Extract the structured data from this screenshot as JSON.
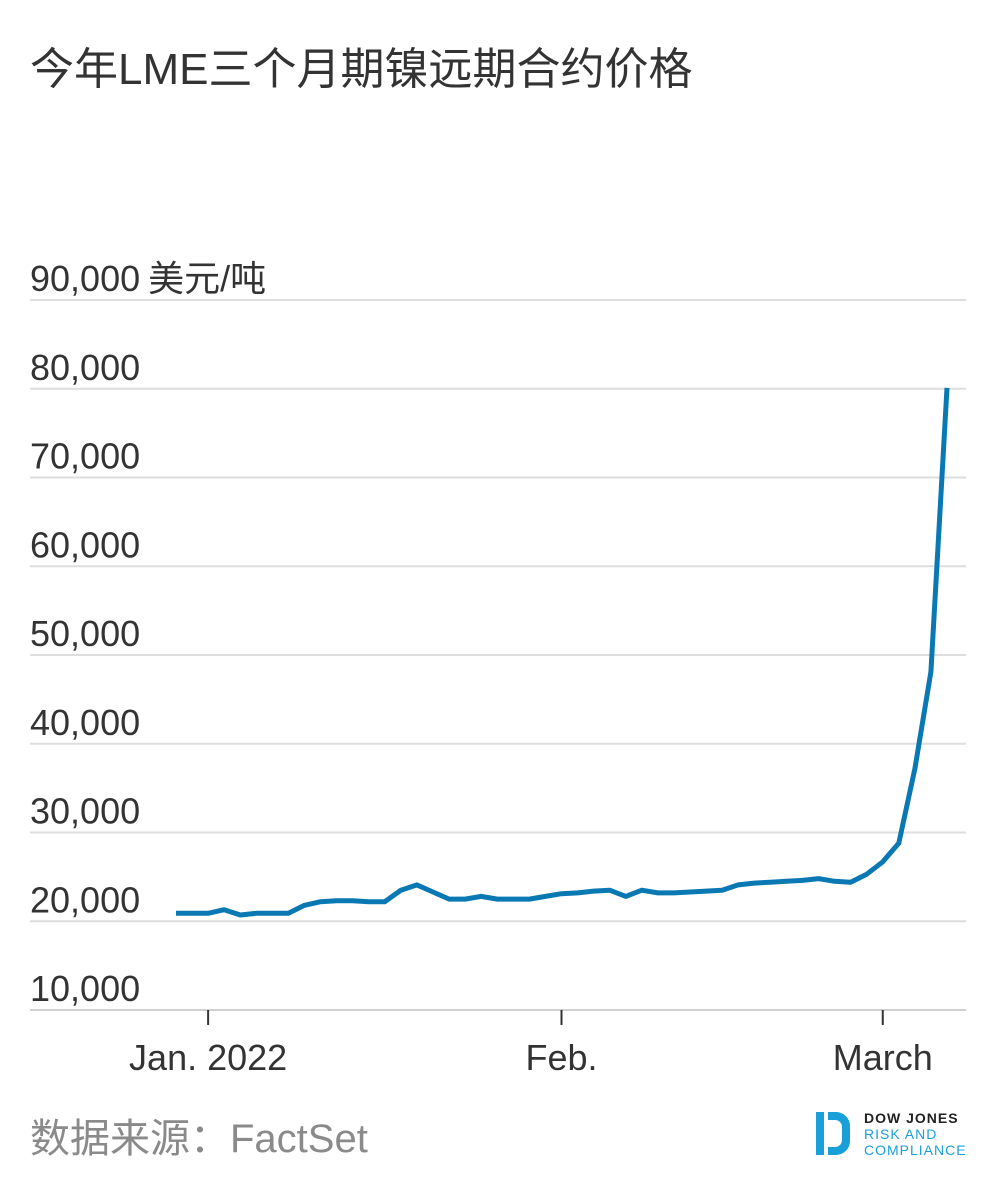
{
  "chart_data": {
    "type": "line",
    "title": "今年LME三个月期镍远期合约价格",
    "y_unit": "美元/吨",
    "categories": [
      null,
      null,
      "Jan. 2022",
      null,
      null,
      null,
      null,
      null,
      null,
      null,
      null,
      null,
      null,
      null,
      null,
      null,
      null,
      null,
      null,
      null,
      null,
      null,
      null,
      null,
      "Feb.",
      null,
      null,
      null,
      null,
      null,
      null,
      null,
      null,
      null,
      null,
      null,
      null,
      null,
      null,
      null,
      null,
      null,
      null,
      null,
      "March",
      null,
      null,
      null,
      null
    ],
    "series": [
      {
        "name": "LME三个月期镍",
        "color": "#0a78b2",
        "values": [
          20900,
          20900,
          20900,
          21300,
          20700,
          20900,
          20900,
          20900,
          21800,
          22200,
          22300,
          22300,
          22200,
          22200,
          23500,
          24100,
          23300,
          22500,
          22500,
          22800,
          22500,
          22500,
          22500,
          22800,
          23100,
          23200,
          23400,
          23500,
          22800,
          23500,
          23200,
          23200,
          23300,
          23400,
          23500,
          24100,
          24300,
          24400,
          24500,
          24600,
          24800,
          24500,
          24400,
          25300,
          26700,
          28800,
          37200,
          48100,
          80100
        ]
      }
    ],
    "ylim": [
      10000,
      90000
    ],
    "yticks": [
      {
        "value": 10000,
        "label": "10,000"
      },
      {
        "value": 20000,
        "label": "20,000"
      },
      {
        "value": 30000,
        "label": "30,000"
      },
      {
        "value": 40000,
        "label": "40,000"
      },
      {
        "value": 50000,
        "label": "50,000"
      },
      {
        "value": 60000,
        "label": "60,000"
      },
      {
        "value": 70000,
        "label": "70,000"
      },
      {
        "value": 80000,
        "label": "80,000"
      },
      {
        "value": 90000,
        "label": "90,000"
      }
    ],
    "grid": true,
    "source": "数据来源：FactSet"
  },
  "logo": {
    "lines": [
      "DOW JONES",
      "RISK AND",
      "COMPLIANCE"
    ]
  }
}
